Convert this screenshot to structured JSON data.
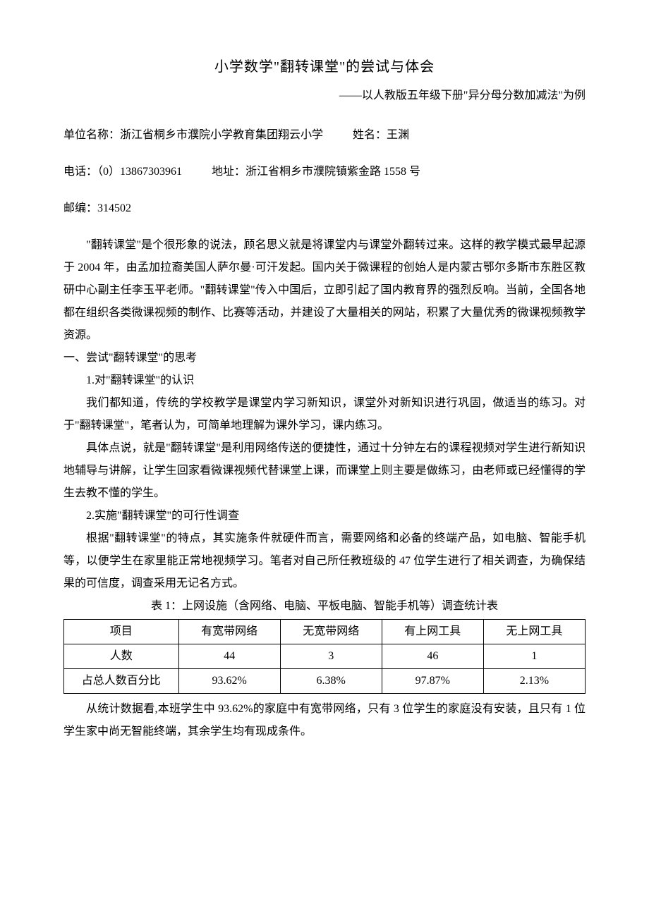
{
  "title": "小学数学\"翻转课堂\"的尝试与体会",
  "subtitle": "——以人教版五年级下册\"异分母分数加减法\"为例",
  "info": {
    "unit_label": "单位名称：",
    "unit_value": "浙江省桐乡市濮院小学教育集团翔云小学",
    "name_label": "姓名：",
    "name_value": "王渊",
    "phone_label": "电话：",
    "phone_value": "（0）13867303961",
    "addr_label": "地址：",
    "addr_value": "浙江省桐乡市濮院镇紫金路 1558 号",
    "zip_label": "邮编：",
    "zip_value": "314502"
  },
  "paragraphs": {
    "p1": "\"翻转课堂\"是个很形象的说法，顾名思义就是将课堂内与课堂外翻转过来。这样的教学模式最早起源于 2004 年，由孟加拉裔美国人萨尔曼·可汗发起。国内关于微课程的创始人是内蒙古鄂尔多斯市东胜区教研中心副主任李玉平老师。\"翻转课堂\"传入中国后，立即引起了国内教育界的强烈反响。当前，全国各地都在组织各类微课视频的制作、比赛等活动，并建设了大量相关的网站，积累了大量优秀的微课视频教学资源。",
    "h1": "一、尝试\"翻转课堂\"的思考",
    "h1_1": "1.对\"翻转课堂\"的认识",
    "p2": "我们都知道，传统的学校教学是课堂内学习新知识，课堂外对新知识进行巩固，做适当的练习。对于\"翻转课堂\"，笔者认为，可简单地理解为课外学习，课内练习。",
    "p3": "具体点说，就是\"翻转课堂\"是利用网络传送的便捷性，通过十分钟左右的课程视频对学生进行新知识地辅导与讲解，让学生回家看微课视频代替课堂上课，而课堂上则主要是做练习，由老师或已经懂得的学生去教不懂的学生。",
    "h1_2": "2.实施\"翻转课堂\"的可行性调查",
    "p4": "根据\"翻转课堂\"的特点，其实施条件就硬件而言，需要网络和必备的终端产品，如电脑、智能手机等，以便学生在家里能正常地视频学习。笔者对自己所任教班级的 47 位学生进行了相关调查，为确保结果的可信度，调查采用无记名方式。",
    "table_caption": "表 1：上网设施（含网络、电脑、平板电脑、智能手机等）调查统计表",
    "p5": "从统计数据看,本班学生中 93.62%的家庭中有宽带网络，只有 3 位学生的家庭没有安装，且只有 1 位学生家中尚无智能终端，其余学生均有现成条件。"
  },
  "table": {
    "columns": [
      "项目",
      "有宽带网络",
      "无宽带网络",
      "有上网工具",
      "无上网工具"
    ],
    "rows": [
      [
        "人数",
        "44",
        "3",
        "46",
        "1"
      ],
      [
        "占总人数百分比",
        "93.62%",
        "6.38%",
        "97.87%",
        "2.13%"
      ]
    ],
    "border_color": "#000000",
    "background_color": "#ffffff",
    "text_align": "center",
    "font_size": 16
  }
}
